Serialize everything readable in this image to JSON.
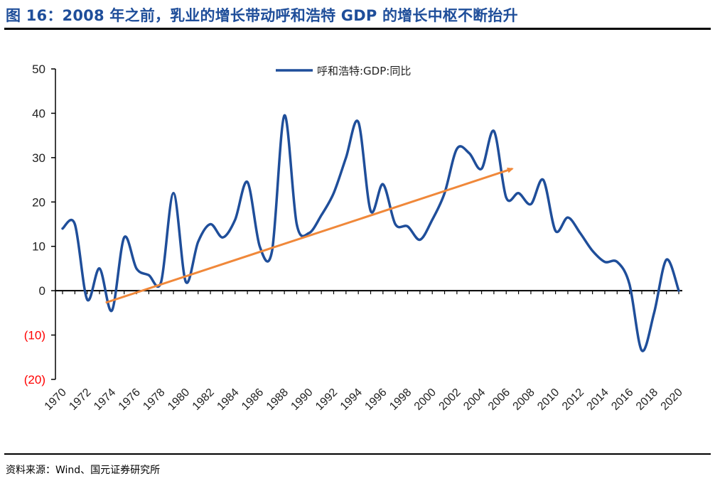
{
  "header": {
    "title": "图 16：2008 年之前，乳业的增长带动呼和浩特 GDP 的增长中枢不断抬升"
  },
  "footer": {
    "source": "资料来源：Wind、国元证券研究所"
  },
  "colors": {
    "title": "#1f4e9a",
    "series": "#1f4e9a",
    "trend": "#f0883a",
    "negative_tick": "#ff0000",
    "axis": "#000000"
  },
  "chart_data": {
    "type": "line",
    "title": "",
    "xlabel": "",
    "ylabel": "",
    "ylim": [
      -20,
      50
    ],
    "yticks": [
      50,
      40,
      30,
      20,
      10,
      0,
      -10,
      -20
    ],
    "ytick_labels": [
      "50",
      "40",
      "30",
      "20",
      "10",
      "0",
      "(10)",
      "(20)"
    ],
    "xlim": [
      1970,
      2020
    ],
    "xtick_labels": [
      "1970",
      "1972",
      "1974",
      "1976",
      "1978",
      "1980",
      "1982",
      "1984",
      "1986",
      "1988",
      "1990",
      "1992",
      "1994",
      "1996",
      "1998",
      "2000",
      "2002",
      "2004",
      "2006",
      "2008",
      "2010",
      "2012",
      "2014",
      "2016",
      "2018",
      "2020"
    ],
    "grid": false,
    "legend": "top-center",
    "series": [
      {
        "name": "呼和浩特:GDP:同比",
        "x": [
          1970,
          1971,
          1972,
          1973,
          1974,
          1975,
          1976,
          1977,
          1978,
          1979,
          1980,
          1981,
          1982,
          1983,
          1984,
          1985,
          1986,
          1987,
          1988,
          1989,
          1990,
          1991,
          1992,
          1993,
          1994,
          1995,
          1996,
          1997,
          1998,
          1999,
          2000,
          2001,
          2002,
          2003,
          2004,
          2005,
          2006,
          2007,
          2008,
          2009,
          2010,
          2011,
          2012,
          2013,
          2014,
          2015,
          2016,
          2017,
          2018,
          2019,
          2020
        ],
        "values": [
          14,
          15,
          -2,
          5,
          -4.5,
          12,
          5,
          3.5,
          2,
          22,
          2,
          11,
          15,
          12,
          16,
          24.5,
          10,
          9,
          39.5,
          15,
          13,
          17,
          22,
          30,
          38,
          18,
          24,
          15,
          14.5,
          11.5,
          16,
          22,
          32,
          31,
          27.5,
          36,
          21,
          22,
          19.5,
          25,
          13.5,
          16.5,
          13,
          9,
          6.5,
          6.5,
          1.5,
          -13.5,
          -5,
          7,
          0
        ]
      }
    ],
    "annotations": [
      {
        "type": "trend-arrow",
        "from": [
          1973.5,
          -2.7
        ],
        "to": [
          2006.5,
          27.5
        ]
      }
    ]
  }
}
